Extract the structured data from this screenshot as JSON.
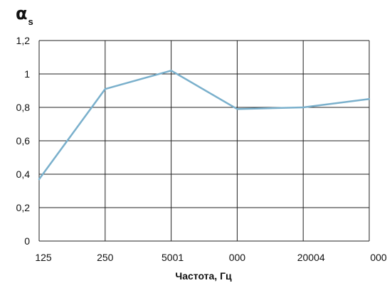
{
  "chart_data": {
    "type": "line",
    "ylabel": {
      "symbol": "α",
      "subscript": "s"
    },
    "xlabel": "Частота, Гц",
    "x_tick_labels": [
      "125",
      "250",
      "5001",
      "000",
      "20004",
      "000"
    ],
    "y_tick_labels": [
      "0",
      "0,2",
      "0,4",
      "0,6",
      "0,8",
      "1",
      "1,2"
    ],
    "ylim": [
      0,
      1.2
    ],
    "y_ticks": [
      0,
      0.2,
      0.4,
      0.6,
      0.8,
      1.0,
      1.2
    ],
    "grid": true,
    "series": [
      {
        "color": "#7ab0cc",
        "x": [
          "125",
          "250",
          "500",
          "1000",
          "2000",
          "4000"
        ],
        "values": [
          0.37,
          0.91,
          1.02,
          0.79,
          0.8,
          0.85
        ]
      }
    ]
  }
}
